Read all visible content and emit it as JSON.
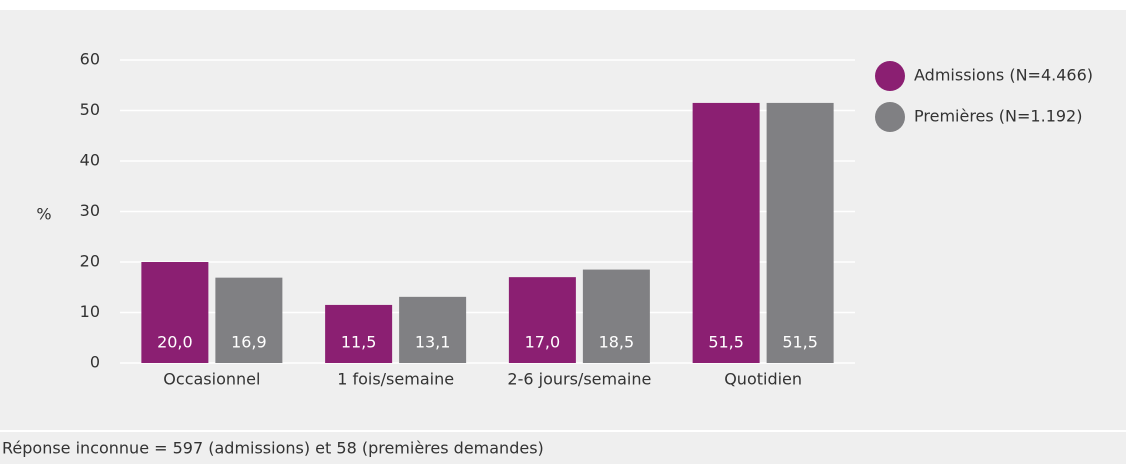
{
  "chart_data": {
    "type": "bar",
    "y_label": "%",
    "categories": [
      "Occasionnel",
      "1 fois/semaine",
      "2-6 jours/semaine",
      "Quotidien"
    ],
    "series": [
      {
        "name": "Admissions (N=4.466)",
        "color": "#8b1f72",
        "values": [
          20.0,
          11.5,
          17.0,
          51.5
        ],
        "value_labels": [
          "20,0",
          "11,5",
          "17,0",
          "51,5"
        ]
      },
      {
        "name": "Premières (N=1.192)",
        "color": "#808083",
        "values": [
          16.9,
          13.1,
          18.5,
          51.5
        ],
        "value_labels": [
          "16,9",
          "13,1",
          "18,5",
          "51,5"
        ]
      }
    ],
    "ylim": [
      0,
      60
    ],
    "yticks": [
      0,
      10,
      20,
      30,
      40,
      50,
      60
    ],
    "grid": true,
    "legend": "top-right",
    "note": "Réponse inconnue = 597 (admissions) et 58 (premières demandes)"
  }
}
